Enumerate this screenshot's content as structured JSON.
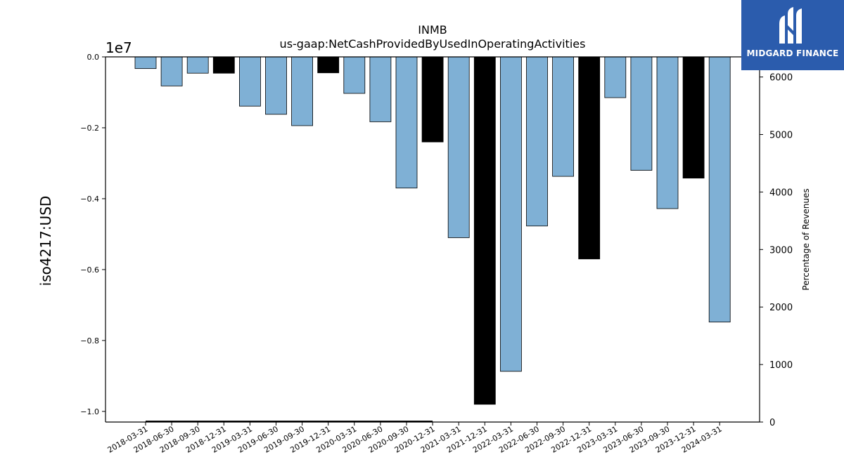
{
  "chart_data": {
    "type": "bar",
    "title": "INMB",
    "subtitle": "us-gaap:NetCashProvidedByUsedInOperatingActivities",
    "ylabel": "iso4217:USD",
    "ylabel_right": "Percentage of Revenues",
    "y_offset_label": "1e7",
    "ylim": [
      -10300000,
      0
    ],
    "ylim_right": [
      0,
      6350
    ],
    "yticks": [
      {
        "value": 0,
        "label": "0.0"
      },
      {
        "value": -2000000,
        "label": "−0.2"
      },
      {
        "value": -4000000,
        "label": "−0.4"
      },
      {
        "value": -6000000,
        "label": "−0.6"
      },
      {
        "value": -8000000,
        "label": "−0.8"
      },
      {
        "value": -10000000,
        "label": "−1.0"
      }
    ],
    "yticks_right": [
      {
        "value": 0,
        "label": "0"
      },
      {
        "value": 1000,
        "label": "1000"
      },
      {
        "value": 2000,
        "label": "2000"
      },
      {
        "value": 3000,
        "label": "3000"
      },
      {
        "value": 4000,
        "label": "4000"
      },
      {
        "value": 5000,
        "label": "5000"
      },
      {
        "value": 6000,
        "label": "6000"
      }
    ],
    "categories": [
      "2018-03-31",
      "2018-06-30",
      "2018-09-30",
      "2018-12-31",
      "2019-03-31",
      "2019-06-30",
      "2019-09-30",
      "2019-12-31",
      "2020-03-31",
      "2020-06-30",
      "2020-09-30",
      "2020-12-31",
      "2021-03-31",
      "2021-12-31",
      "2022-03-31",
      "2022-06-30",
      "2022-09-30",
      "2022-12-31",
      "2023-03-31",
      "2023-06-30",
      "2023-09-30",
      "2023-12-31",
      "2024-03-31"
    ],
    "values": [
      -330000,
      -820000,
      -460000,
      -460000,
      -1390000,
      -1620000,
      -1940000,
      -450000,
      -1030000,
      -1830000,
      -3700000,
      -2400000,
      -5100000,
      -9800000,
      -8870000,
      -4770000,
      -3370000,
      -5700000,
      -1150000,
      -3200000,
      -4280000,
      -3420000,
      -7480000
    ],
    "annual": [
      false,
      false,
      false,
      true,
      false,
      false,
      false,
      true,
      false,
      false,
      false,
      true,
      false,
      true,
      false,
      false,
      false,
      true,
      false,
      false,
      false,
      true,
      false
    ],
    "percent_of_revenues": [
      0,
      0,
      0,
      0,
      0,
      0,
      0,
      0,
      0,
      0,
      0,
      0,
      null,
      null,
      null,
      null,
      null,
      null,
      null,
      null,
      null,
      null,
      null
    ],
    "colors": {
      "quarterly": "#7fb0d5",
      "annual": "#000000",
      "edge": "#000000",
      "percent_line": "#000000"
    },
    "grid": false,
    "legend": "none"
  },
  "logo": {
    "text": "MIDGARD FINANCE",
    "background": "#2b5cad",
    "icon": "midgard-logo-icon"
  }
}
